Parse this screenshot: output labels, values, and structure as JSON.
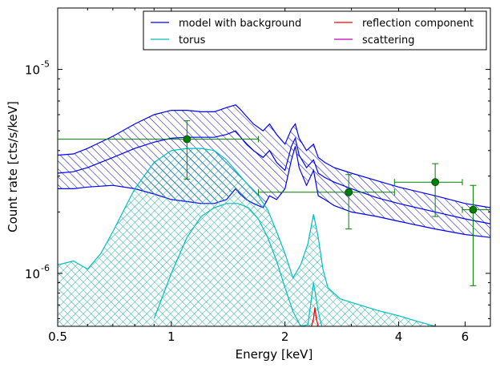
{
  "chart_data": {
    "type": "line",
    "xlabel": "Energy [keV]",
    "ylabel": "Count rate [cts/s/keV]",
    "xscale": "log",
    "yscale": "log",
    "xlim": [
      0.5,
      7.0
    ],
    "ylim": [
      5.5e-07,
      2e-05
    ],
    "grid": false,
    "legend_position": "top-right",
    "x_ticks": [
      {
        "value": 0.5,
        "label": "0.5"
      },
      {
        "value": 1,
        "label": "1"
      },
      {
        "value": 2,
        "label": "2"
      },
      {
        "value": 4,
        "label": "4"
      },
      {
        "value": 6,
        "label": "6"
      }
    ],
    "y_ticks": [
      {
        "value": 1e-06,
        "base": "10",
        "exp": "-6"
      },
      {
        "value": 1e-05,
        "base": "10",
        "exp": "-5"
      }
    ],
    "legend": [
      {
        "label": "model with background",
        "color": "#0000ff"
      },
      {
        "label": "reflection component",
        "color": "#ff0000"
      },
      {
        "label": "torus",
        "color": "#00bfbf"
      },
      {
        "label": "scattering",
        "color": "#bf00bf"
      }
    ],
    "series": [
      {
        "name": "model with background",
        "kind": "band",
        "color": "#0000ff",
        "hatch": "diagonal",
        "x": [
          0.5,
          0.55,
          0.6,
          0.7,
          0.8,
          0.9,
          1.0,
          1.1,
          1.2,
          1.3,
          1.4,
          1.48,
          1.52,
          1.58,
          1.65,
          1.75,
          1.82,
          1.9,
          2.0,
          2.08,
          2.13,
          2.18,
          2.28,
          2.38,
          2.45,
          2.55,
          2.7,
          3.0,
          3.5,
          4.0,
          5.0,
          6.0,
          7.0
        ],
        "upper": [
          3.8e-06,
          3.85e-06,
          4.1e-06,
          4.7e-06,
          5.4e-06,
          6e-06,
          6.3e-06,
          6.3e-06,
          6.2e-06,
          6.2e-06,
          6.5e-06,
          6.7e-06,
          6.4e-06,
          5.9e-06,
          5.4e-06,
          5e-06,
          5.4e-06,
          4.8e-06,
          4.3e-06,
          5.1e-06,
          5.4e-06,
          4.6e-06,
          4e-06,
          4.3e-06,
          3.7e-06,
          3.5e-06,
          3.3e-06,
          3.1e-06,
          2.85e-06,
          2.65e-06,
          2.4e-06,
          2.2e-06,
          2.1e-06
        ],
        "mid": [
          3.1e-06,
          3.15e-06,
          3.3e-06,
          3.7e-06,
          4.1e-06,
          4.4e-06,
          4.6e-06,
          4.65e-06,
          4.65e-06,
          4.65e-06,
          4.8e-06,
          5e-06,
          4.7e-06,
          4.3e-06,
          4e-06,
          3.7e-06,
          4e-06,
          3.5e-06,
          3.2e-06,
          4.2e-06,
          4.6e-06,
          3.8e-06,
          3.3e-06,
          3.6e-06,
          3.1e-06,
          2.95e-06,
          2.8e-06,
          2.6e-06,
          2.35e-06,
          2.2e-06,
          2e-06,
          1.85e-06,
          1.75e-06
        ],
        "lower": [
          2.6e-06,
          2.6e-06,
          2.65e-06,
          2.7e-06,
          2.6e-06,
          2.45e-06,
          2.3e-06,
          2.25e-06,
          2.2e-06,
          2.2e-06,
          2.3e-06,
          2.6e-06,
          2.45e-06,
          2.3e-06,
          2.2e-06,
          2.1e-06,
          2.4e-06,
          2.3e-06,
          2.6e-06,
          3.6e-06,
          4.2e-06,
          3.3e-06,
          2.7e-06,
          3.2e-06,
          2.4e-06,
          2.3e-06,
          2.15e-06,
          2e-06,
          1.9e-06,
          1.8e-06,
          1.65e-06,
          1.55e-06,
          1.5e-06
        ]
      },
      {
        "name": "torus",
        "kind": "band",
        "color": "#00bfbf",
        "hatch": "cross",
        "x": [
          0.5,
          0.55,
          0.6,
          0.65,
          0.7,
          0.8,
          0.9,
          1.0,
          1.1,
          1.2,
          1.3,
          1.4,
          1.5,
          1.6,
          1.7,
          1.8,
          1.9,
          2.0,
          2.1,
          2.2,
          2.3,
          2.38,
          2.45,
          2.52,
          2.6,
          2.8,
          3.0,
          3.5,
          4.0,
          4.5,
          5.0,
          5.5
        ],
        "upper": [
          1.1e-06,
          1.15e-06,
          1.05e-06,
          1.25e-06,
          1.6e-06,
          2.6e-06,
          3.5e-06,
          4e-06,
          4.1e-06,
          4.1e-06,
          4e-06,
          3.6e-06,
          3.1e-06,
          2.7e-06,
          2.4e-06,
          2.05e-06,
          1.6e-06,
          1.25e-06,
          9.5e-07,
          1.1e-06,
          1.4e-06,
          1.95e-06,
          1.5e-06,
          1.05e-06,
          8.5e-07,
          7.5e-07,
          7.2e-07,
          6.6e-07,
          6.2e-07,
          5.8e-07,
          5.5e-07,
          5.2e-07
        ],
        "mid": [
          null,
          null,
          null,
          null,
          null,
          null,
          6e-07,
          1e-06,
          1.5e-06,
          1.9e-06,
          2.1e-06,
          2.2e-06,
          2.2e-06,
          2.1e-06,
          1.85e-06,
          1.5e-06,
          1.15e-06,
          8.5e-07,
          6.5e-07,
          5.5e-07,
          5.6e-07,
          9e-07,
          6.5e-07,
          5.2e-07,
          null,
          null,
          null,
          null,
          null,
          null,
          null,
          null
        ]
      },
      {
        "name": "reflection component",
        "kind": "line",
        "color": "#ff0000",
        "x": [
          2.35,
          2.38,
          2.4,
          2.42,
          2.45
        ],
        "y": [
          5.5e-07,
          6e-07,
          6.8e-07,
          6e-07,
          5.5e-07
        ]
      },
      {
        "name": "scattering",
        "kind": "line",
        "color": "#bf00bf",
        "x": [],
        "y": []
      },
      {
        "name": "data",
        "kind": "points",
        "color": "#008000",
        "points": [
          {
            "x": 1.1,
            "y": 4.55e-06,
            "xlo": 0.5,
            "xhi": 1.7,
            "ylo": 2.9e-06,
            "yhi": 5.6e-06
          },
          {
            "x": 2.95,
            "y": 2.5e-06,
            "xlo": 1.7,
            "xhi": 3.9,
            "ylo": 1.65e-06,
            "yhi": 3.05e-06
          },
          {
            "x": 5.0,
            "y": 2.8e-06,
            "xlo": 3.9,
            "xhi": 5.9,
            "ylo": 1.9e-06,
            "yhi": 3.45e-06
          },
          {
            "x": 6.3,
            "y": 2.05e-06,
            "xlo": 5.9,
            "xhi": 7.0,
            "ylo": 8.7e-07,
            "yhi": 2.7e-06
          }
        ]
      }
    ]
  }
}
